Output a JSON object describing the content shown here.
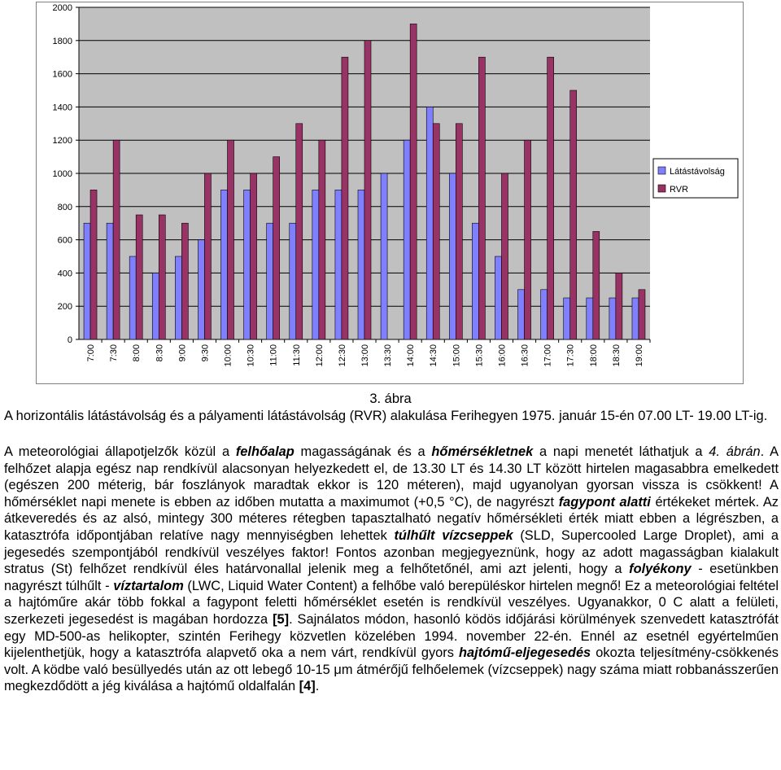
{
  "chart_data": {
    "type": "bar",
    "categories": [
      "7:00",
      "7:30",
      "8:00",
      "8:30",
      "9:00",
      "9:30",
      "10:00",
      "10:30",
      "11:00",
      "11:30",
      "12:00",
      "12:30",
      "13:00",
      "13:30",
      "14:00",
      "14:30",
      "15:00",
      "15:30",
      "16:00",
      "16:30",
      "17:00",
      "17:30",
      "18:00",
      "18:30",
      "19:00"
    ],
    "series": [
      {
        "name": "Látástávolság",
        "color": "#8080ff",
        "values": [
          700,
          700,
          500,
          400,
          500,
          600,
          900,
          900,
          700,
          700,
          900,
          900,
          900,
          1000,
          1200,
          1400,
          1000,
          700,
          500,
          300,
          300,
          250,
          250,
          250,
          250
        ]
      },
      {
        "name": "RVR",
        "color": "#993366",
        "values": [
          900,
          1200,
          750,
          750,
          700,
          1000,
          1200,
          1000,
          1100,
          1300,
          1200,
          1700,
          1800,
          null,
          1900,
          1300,
          1300,
          1700,
          1000,
          1200,
          1700,
          1500,
          650,
          400,
          300
        ]
      }
    ],
    "ylim": [
      0,
      2000
    ],
    "yticks": [
      0,
      200,
      400,
      600,
      800,
      1000,
      1200,
      1400,
      1600,
      1800,
      2000
    ],
    "legend": "right",
    "grid": true,
    "plot_bg": "#c0c0c0"
  },
  "caption": {
    "number": "3. ábra",
    "text": "A horizontális látástávolság és a pályamenti látástávolság (RVR) alakulása Ferihegyen 1975. január 15-én 07.00 LT- 19.00 LT-ig."
  },
  "body": {
    "t1": "A meteorológiai állapotjelzők közül a ",
    "t2": "felhőalap",
    "t3": " magasságának és a ",
    "t4": "hőmérsékletnek",
    "t5": " a napi menetét láthatjuk a ",
    "t6": "4. ábrán",
    "t7": ". A felhőzet alapja egész nap rendkívül alacsonyan helyezkedett el, de 13.30 LT és 14.30 LT között hirtelen magasabbra emelkedett (egészen 200 méterig, bár foszlányok maradtak ekkor is 120 méteren), majd ugyanolyan gyorsan vissza is csökkent! A hőmérséklet napi menete is ebben az időben mutatta a maximumot (+0,5 °C), de nagyrészt ",
    "t8": "fagypont alatti",
    "t9": " értékeket mértek. Az átkeveredés és az alsó, mintegy 300 méteres rétegben tapasztalható negatív hőmérsékleti érték miatt ebben a légrészben, a katasztrófa időpontjában relatíve nagy mennyiségben lehettek ",
    "t10": "túlhűlt vízcseppek",
    "t11": " (SLD, Supercooled Large Droplet), ami a jegesedés szempontjából rendkívül veszélyes faktor! Fontos azonban megjegyeznünk, hogy az adott magasságban kialakult stratus (St) felhőzet rendkívül éles határvonallal jelenik meg a felhőtetőnél, ami azt jelenti, hogy a ",
    "t12": "folyékony",
    "t13": " - esetünkben nagyrészt túlhűlt - ",
    "t14": "víztartalom",
    "t15": " (LWC, Liquid Water Content) a felhőbe való berepüléskor hirtelen megnő! Ez a meteorológiai feltétel a hajtóműre akár több fokkal a fagypont feletti hőmérséklet esetén is rendkívül veszélyes. Ugyanakkor, 0 C alatt a felületi, szerkezeti jegesedést is magában hordozza ",
    "t16": "[5]",
    "t17": ". Sajnálatos módon, hasonló ködös időjárási körülmények szenvedett katasztrófát egy MD-500-as helikopter, szintén Ferihegy közvetlen közelében 1994. november 22-én. Ennél az esetnél egyértelműen kijelenthetjük, hogy a katasztrófa alapvető oka a nem várt, rendkívül gyors ",
    "t18": "hajtómű-eljegesedés",
    "t19": " okozta teljesítmény-csökkenés volt. A ködbe való besüllyedés után az ott lebegő 10-15 μm átmérőjű felhőelemek (vízcseppek) nagy száma miatt robbanásszerűen megkezdődött a jég kiválása a hajtómű oldalfalán ",
    "t20": "[4]",
    "t21": "."
  }
}
